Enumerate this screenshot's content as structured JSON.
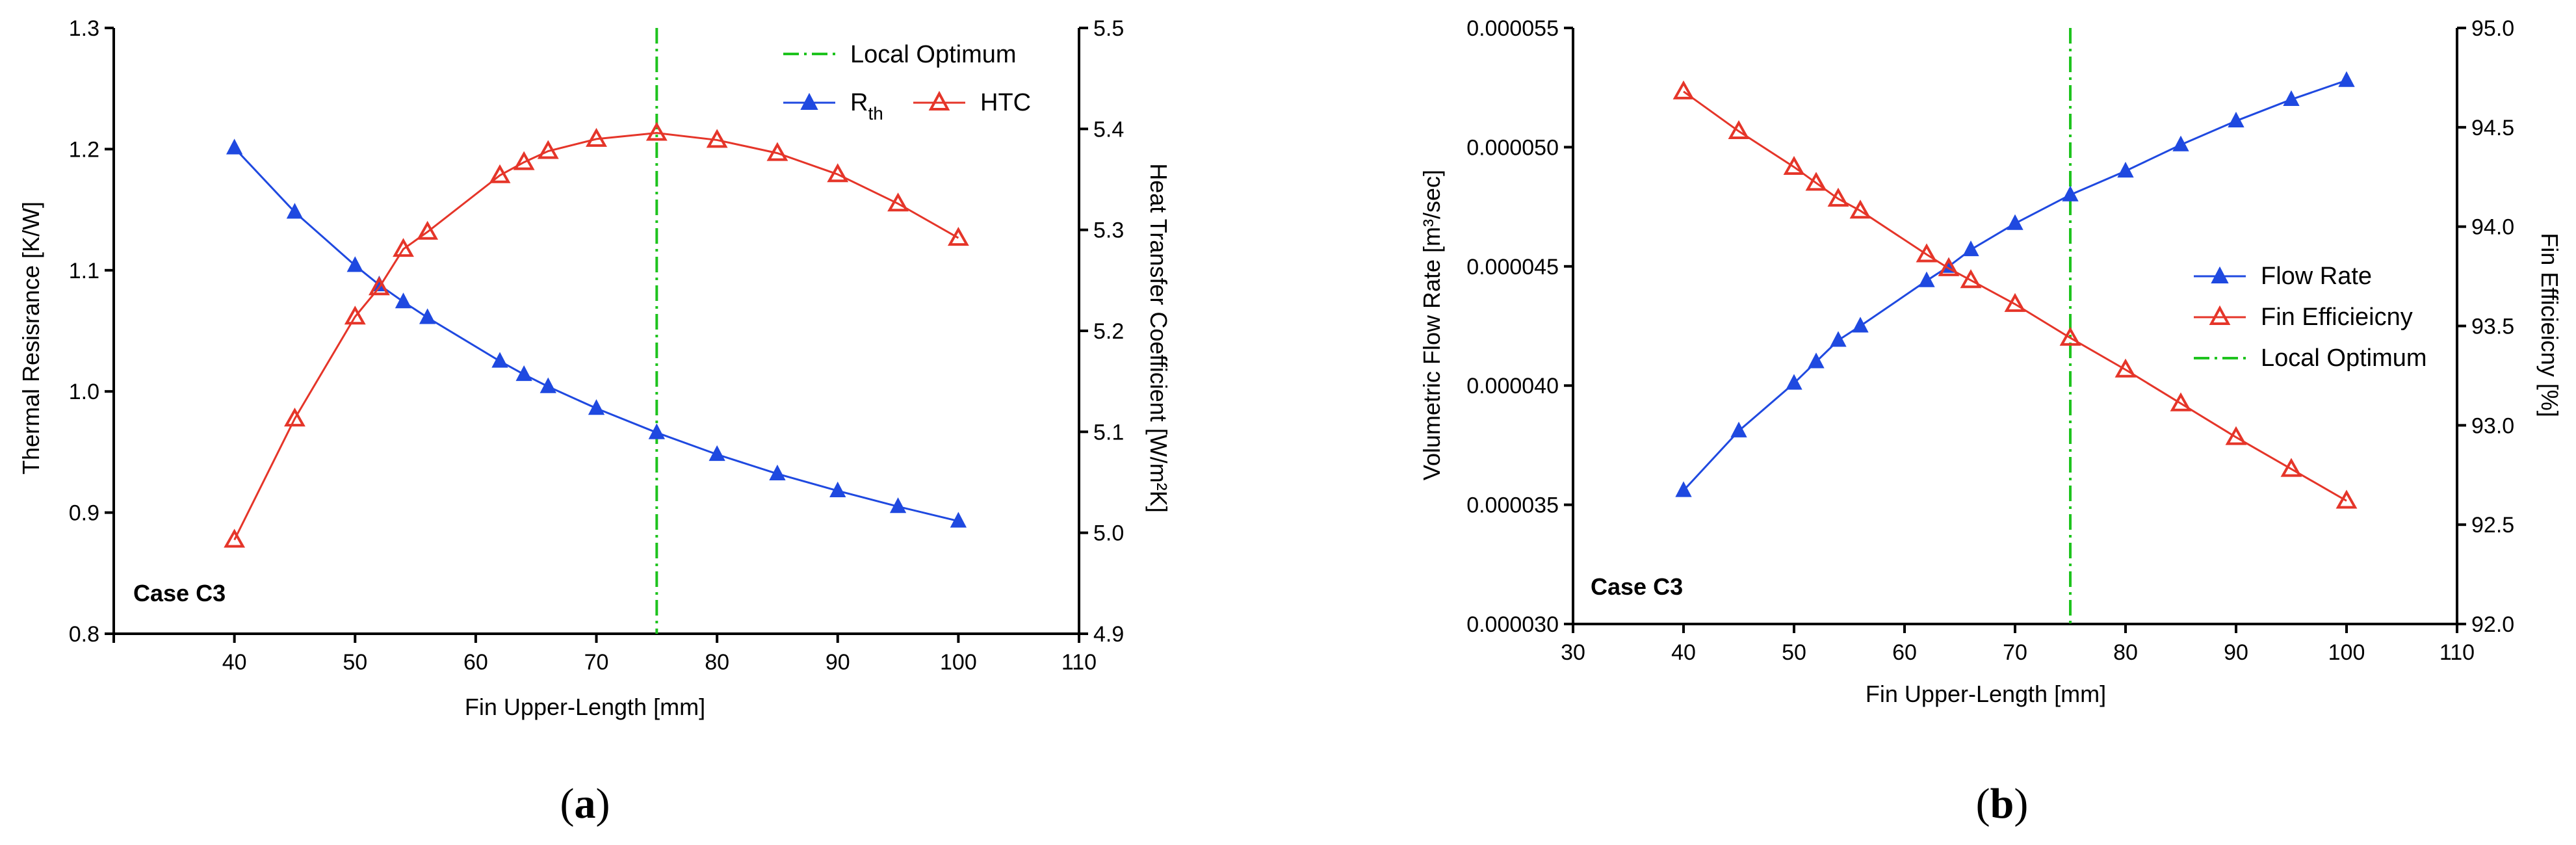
{
  "chart_data": [
    {
      "id": "a",
      "type": "line",
      "panel_label": "a",
      "annotation": "Case C3",
      "xlabel": "Fin Upper-Length [mm]",
      "ylabel_left": "Thermal Resisrance [K/W]",
      "ylabel_right": "Heat Transfer Coefficient [W/m²K]",
      "xlim": [
        30,
        110
      ],
      "xticks": [
        40,
        50,
        60,
        70,
        80,
        90,
        100,
        110
      ],
      "ylim_left": [
        0.8,
        1.3
      ],
      "yticks_left": [
        "0.8",
        "0.9",
        "1.0",
        "1.1",
        "1.2",
        "1.3"
      ],
      "ylim_right": [
        4.9,
        5.5
      ],
      "yticks_right": [
        "4.9",
        "5.0",
        "5.1",
        "5.2",
        "5.3",
        "5.4",
        "5.5"
      ],
      "local_optimum_x": 75,
      "legend": {
        "local_optimum": "Local Optimum",
        "rth_main": "R",
        "rth_sub": "th",
        "htc": "HTC"
      },
      "x": [
        40,
        45,
        50,
        52,
        54,
        56,
        62,
        64,
        66,
        70,
        75,
        80,
        85,
        90,
        95,
        100
      ],
      "series": [
        {
          "name": "Rth",
          "axis": "left",
          "color": "#1f49e0",
          "marker": "filled-triangle",
          "values": [
            1.201,
            1.148,
            1.104,
            1.088,
            1.074,
            1.061,
            1.025,
            1.014,
            1.004,
            0.986,
            0.966,
            0.948,
            0.932,
            0.918,
            0.905,
            0.893
          ]
        },
        {
          "name": "HTC",
          "axis": "right",
          "color": "#e53529",
          "marker": "open-triangle",
          "values": [
            4.993,
            5.113,
            5.214,
            5.243,
            5.281,
            5.298,
            5.354,
            5.367,
            5.378,
            5.39,
            5.396,
            5.389,
            5.376,
            5.355,
            5.326,
            5.292
          ]
        }
      ]
    },
    {
      "id": "b",
      "type": "line",
      "panel_label": "b",
      "annotation": "Case C3",
      "xlabel": "Fin Upper-Length [mm]",
      "ylabel_left": "Volumetric Flow Rate [m³/sec]",
      "ylabel_right": "Fin Efficieicny [%]",
      "xlim": [
        30,
        110
      ],
      "xticks": [
        30,
        40,
        50,
        60,
        70,
        80,
        90,
        100,
        110
      ],
      "ylim_left": [
        3e-05,
        5.5e-05
      ],
      "yticks_left": [
        "0.000030",
        "0.000035",
        "0.000040",
        "0.000045",
        "0.000050",
        "0.000055"
      ],
      "ylim_right": [
        92.0,
        95.0
      ],
      "yticks_right": [
        "92.0",
        "92.5",
        "93.0",
        "93.5",
        "94.0",
        "94.5",
        "95.0"
      ],
      "local_optimum_x": 75,
      "legend": {
        "flow_rate": "Flow Rate",
        "fin_eff": "Fin Efficieicny",
        "local_optimum": "Local Optimum"
      },
      "x": [
        40,
        45,
        50,
        52,
        54,
        56,
        62,
        64,
        66,
        70,
        75,
        80,
        85,
        90,
        95,
        100
      ],
      "series": [
        {
          "name": "Flow Rate",
          "axis": "left",
          "color": "#1f49e0",
          "marker": "filled-triangle",
          "values": [
            3.56e-05,
            3.81e-05,
            4.01e-05,
            4.1e-05,
            4.19e-05,
            4.25e-05,
            4.44e-05,
            4.5e-05,
            4.57e-05,
            4.68e-05,
            4.8e-05,
            4.9e-05,
            5.01e-05,
            5.11e-05,
            5.2e-05,
            5.28e-05
          ]
        },
        {
          "name": "Fin Efficieicny",
          "axis": "right",
          "color": "#e53529",
          "marker": "open-triangle",
          "values": [
            94.68,
            94.48,
            94.3,
            94.22,
            94.14,
            94.08,
            93.86,
            93.79,
            93.73,
            93.61,
            93.44,
            93.28,
            93.11,
            92.94,
            92.78,
            92.62
          ]
        }
      ]
    }
  ]
}
